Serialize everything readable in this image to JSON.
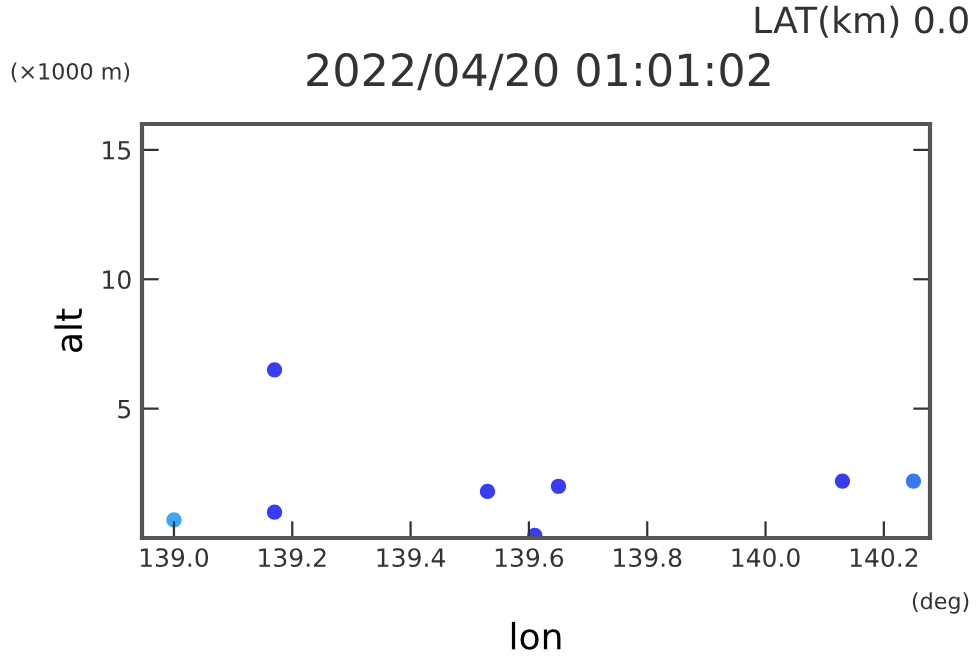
{
  "chart_data": {
    "type": "scatter",
    "title": "2022/04/20 01:01:02",
    "subtitle": "LAT(km) 0.0",
    "xlabel": "lon",
    "ylabel": "alt",
    "annotations": [
      "(×1000 m)",
      "(deg)"
    ],
    "x": [
      139.0,
      139.17,
      139.17,
      139.53,
      139.61,
      139.65,
      140.13,
      140.25
    ],
    "values": [
      0.7,
      6.5,
      1.0,
      1.8,
      0.1,
      2.0,
      2.2,
      2.2
    ],
    "colors": [
      "#3ea6f5",
      "#3a3cf0",
      "#3a3cf0",
      "#3a3cf0",
      "#3a3cf0",
      "#3a3cf0",
      "#3a3cf0",
      "#3a78f0"
    ],
    "marker": "circle",
    "xlim": [
      138.946,
      140.278
    ],
    "xticks": [
      {
        "value": 139.0,
        "label": "139.0"
      },
      {
        "value": 139.2,
        "label": "139.2"
      },
      {
        "value": 139.4,
        "label": "139.4"
      },
      {
        "value": 139.6,
        "label": "139.6"
      },
      {
        "value": 139.8,
        "label": "139.8"
      },
      {
        "value": 140.0,
        "label": "140.0"
      },
      {
        "value": 140.2,
        "label": "140.2"
      }
    ],
    "ylim": [
      0,
      16
    ],
    "yticks": [
      5,
      10,
      15
    ],
    "grid": false,
    "legend": false
  }
}
